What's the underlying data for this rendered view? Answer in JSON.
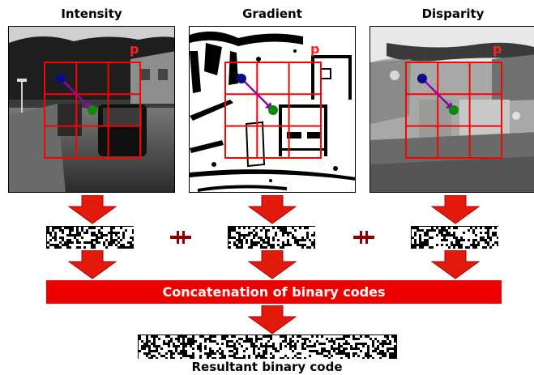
{
  "panels": [
    {
      "title": "Intensity",
      "point_label": "p"
    },
    {
      "title": "Gradient",
      "point_label": "p"
    },
    {
      "title": "Disparity",
      "point_label": "p"
    }
  ],
  "concat_label": "Concatenation of binary codes",
  "result_label": "Resultant binary code",
  "colors": {
    "grid": "#ff0000",
    "point_label": "#ff2020",
    "blue_dot": "#0b0b8a",
    "green_dot": "#0a8a0a",
    "vector": "#8a0aa0",
    "arrow": "#e21a0c",
    "bar": "#ee0000",
    "plus": "#8b0000"
  }
}
